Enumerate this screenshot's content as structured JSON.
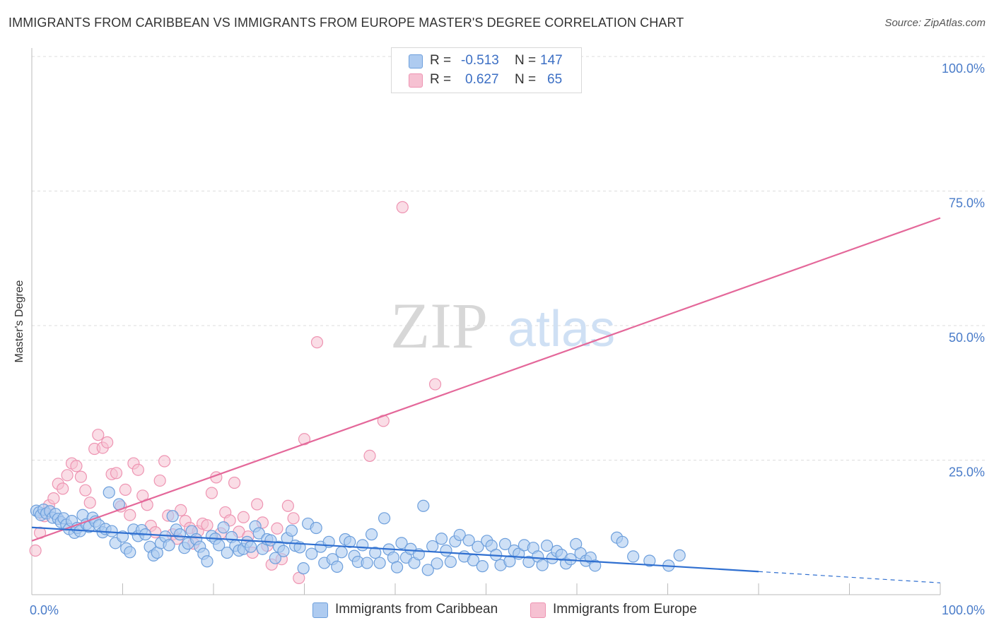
{
  "title": "IMMIGRANTS FROM CARIBBEAN VS IMMIGRANTS FROM EUROPE MASTER'S DEGREE CORRELATION CHART",
  "source": "Source: ZipAtlas.com",
  "watermark": {
    "zip": "ZIP",
    "atlas": "atlas"
  },
  "legend": {
    "caribbean": {
      "r_label": "R =",
      "r_value": "-0.513",
      "n_label": "N =",
      "n_value": "147"
    },
    "europe": {
      "r_label": "R =",
      "r_value": "0.627",
      "n_label": "N =",
      "n_value": "65"
    }
  },
  "bottom_legend": {
    "caribbean": "Immigrants from Caribbean",
    "europe": "Immigrants from Europe"
  },
  "colors": {
    "caribbean_fill": "#aecbf0",
    "caribbean_stroke": "#6d9fdc",
    "caribbean_line": "#2f6fd0",
    "europe_fill": "#f6c1d2",
    "europe_stroke": "#ee94b2",
    "europe_line": "#e4689a",
    "tick_text": "#4a7cc9",
    "grid": "#dddddd"
  },
  "chart_data": {
    "type": "scatter",
    "title": "IMMIGRANTS FROM CARIBBEAN VS IMMIGRANTS FROM EUROPE MASTER'S DEGREE CORRELATION CHART",
    "xlabel": "",
    "ylabel": "Master's Degree",
    "xlim": [
      0,
      100
    ],
    "ylim": [
      0,
      100
    ],
    "x_tick_labels": [
      "0.0%",
      "100.0%"
    ],
    "y_ticks": [
      25,
      50,
      75,
      100
    ],
    "y_tick_labels": [
      "25.0%",
      "50.0%",
      "75.0%",
      "100.0%"
    ],
    "grid": true,
    "legend_position": "top-center",
    "series": [
      {
        "name": "Immigrants from Caribbean",
        "R": -0.513,
        "N": 147,
        "trend": {
          "x0": 0,
          "y0": 12.5,
          "x_solid_end": 80,
          "y_solid_end": 4.3,
          "x1": 100,
          "y1": 2.2
        },
        "points": [
          [
            0.5,
            15.6
          ],
          [
            0.8,
            15.3
          ],
          [
            1.0,
            14.8
          ],
          [
            1.3,
            15.8
          ],
          [
            1.6,
            15.1
          ],
          [
            2.0,
            15.5
          ],
          [
            2.3,
            14.3
          ],
          [
            2.6,
            15.0
          ],
          [
            2.9,
            14.1
          ],
          [
            3.2,
            13.5
          ],
          [
            3.5,
            14.2
          ],
          [
            3.8,
            13.0
          ],
          [
            4.1,
            12.2
          ],
          [
            4.4,
            13.7
          ],
          [
            4.7,
            11.5
          ],
          [
            5.0,
            12.4
          ],
          [
            5.3,
            11.8
          ],
          [
            5.6,
            14.8
          ],
          [
            6.0,
            13.1
          ],
          [
            6.3,
            12.6
          ],
          [
            6.7,
            14.3
          ],
          [
            7.0,
            13.6
          ],
          [
            7.4,
            12.9
          ],
          [
            7.8,
            11.6
          ],
          [
            8.1,
            12.2
          ],
          [
            8.5,
            19.0
          ],
          [
            8.8,
            11.8
          ],
          [
            9.2,
            9.6
          ],
          [
            9.6,
            16.8
          ],
          [
            10.0,
            10.8
          ],
          [
            10.4,
            8.6
          ],
          [
            10.8,
            7.9
          ],
          [
            11.2,
            12.1
          ],
          [
            11.7,
            10.9
          ],
          [
            12.1,
            12.0
          ],
          [
            12.5,
            11.2
          ],
          [
            13.0,
            8.9
          ],
          [
            13.4,
            7.3
          ],
          [
            13.8,
            7.8
          ],
          [
            14.2,
            9.6
          ],
          [
            14.7,
            10.8
          ],
          [
            15.1,
            9.2
          ],
          [
            15.5,
            14.6
          ],
          [
            15.9,
            12.1
          ],
          [
            16.3,
            11.2
          ],
          [
            16.8,
            8.7
          ],
          [
            17.2,
            9.5
          ],
          [
            17.6,
            11.8
          ],
          [
            18.1,
            10.3
          ],
          [
            18.5,
            8.9
          ],
          [
            18.9,
            7.6
          ],
          [
            19.3,
            6.2
          ],
          [
            19.8,
            10.9
          ],
          [
            20.2,
            10.4
          ],
          [
            20.6,
            9.2
          ],
          [
            21.1,
            12.5
          ],
          [
            21.5,
            7.8
          ],
          [
            22.0,
            10.7
          ],
          [
            22.4,
            9.1
          ],
          [
            22.8,
            8.2
          ],
          [
            23.3,
            8.5
          ],
          [
            23.7,
            9.8
          ],
          [
            24.1,
            8.9
          ],
          [
            24.6,
            12.7
          ],
          [
            25.0,
            11.4
          ],
          [
            25.4,
            8.5
          ],
          [
            25.9,
            10.3
          ],
          [
            26.3,
            10.1
          ],
          [
            26.8,
            6.8
          ],
          [
            27.2,
            8.9
          ],
          [
            27.7,
            8.1
          ],
          [
            28.1,
            10.5
          ],
          [
            28.6,
            11.9
          ],
          [
            29.0,
            9.1
          ],
          [
            29.5,
            8.8
          ],
          [
            29.9,
            4.9
          ],
          [
            30.4,
            13.2
          ],
          [
            30.8,
            7.6
          ],
          [
            31.3,
            12.4
          ],
          [
            31.8,
            8.9
          ],
          [
            32.2,
            5.9
          ],
          [
            32.7,
            9.8
          ],
          [
            33.1,
            6.6
          ],
          [
            33.6,
            5.2
          ],
          [
            34.1,
            7.9
          ],
          [
            34.5,
            10.3
          ],
          [
            35.0,
            9.8
          ],
          [
            35.5,
            7.2
          ],
          [
            35.9,
            6.1
          ],
          [
            36.4,
            9.2
          ],
          [
            36.9,
            5.9
          ],
          [
            37.4,
            11.2
          ],
          [
            37.8,
            7.8
          ],
          [
            38.3,
            5.9
          ],
          [
            38.8,
            14.2
          ],
          [
            39.3,
            8.4
          ],
          [
            39.8,
            6.9
          ],
          [
            40.2,
            5.1
          ],
          [
            40.7,
            9.6
          ],
          [
            41.2,
            6.9
          ],
          [
            41.7,
            8.5
          ],
          [
            42.1,
            5.9
          ],
          [
            42.6,
            7.5
          ],
          [
            43.1,
            16.5
          ],
          [
            43.6,
            4.6
          ],
          [
            44.1,
            9.0
          ],
          [
            44.6,
            5.8
          ],
          [
            45.1,
            10.4
          ],
          [
            45.6,
            8.2
          ],
          [
            46.1,
            6.1
          ],
          [
            46.6,
            9.9
          ],
          [
            47.1,
            11.1
          ],
          [
            47.6,
            7.1
          ],
          [
            48.1,
            10.1
          ],
          [
            48.6,
            6.4
          ],
          [
            49.1,
            8.9
          ],
          [
            49.6,
            5.3
          ],
          [
            50.1,
            10.0
          ],
          [
            50.6,
            9.1
          ],
          [
            51.1,
            7.4
          ],
          [
            51.6,
            5.5
          ],
          [
            52.1,
            9.4
          ],
          [
            52.6,
            6.2
          ],
          [
            53.1,
            8.2
          ],
          [
            53.6,
            7.6
          ],
          [
            54.2,
            9.2
          ],
          [
            54.7,
            6.1
          ],
          [
            55.2,
            8.7
          ],
          [
            55.7,
            7.1
          ],
          [
            56.2,
            5.5
          ],
          [
            56.7,
            9.1
          ],
          [
            57.3,
            6.8
          ],
          [
            57.8,
            8.1
          ],
          [
            58.3,
            7.4
          ],
          [
            58.8,
            5.8
          ],
          [
            59.3,
            6.6
          ],
          [
            59.9,
            9.4
          ],
          [
            60.4,
            7.7
          ],
          [
            61.0,
            6.3
          ],
          [
            61.5,
            6.9
          ],
          [
            62.0,
            5.4
          ],
          [
            64.4,
            10.6
          ],
          [
            65.0,
            9.8
          ],
          [
            66.2,
            7.1
          ],
          [
            68.0,
            6.3
          ],
          [
            70.1,
            5.4
          ],
          [
            71.3,
            7.3
          ]
        ]
      },
      {
        "name": "Immigrants from Europe",
        "R": 0.627,
        "N": 65,
        "trend": {
          "x0": 0,
          "y0": 10.0,
          "x1": 100,
          "y1": 70.0
        },
        "points": [
          [
            0.4,
            8.2
          ],
          [
            0.9,
            11.5
          ],
          [
            1.4,
            14.6
          ],
          [
            1.9,
            16.6
          ],
          [
            2.4,
            17.9
          ],
          [
            2.9,
            20.6
          ],
          [
            3.4,
            19.7
          ],
          [
            3.9,
            22.2
          ],
          [
            4.4,
            24.4
          ],
          [
            4.9,
            23.9
          ],
          [
            5.4,
            21.9
          ],
          [
            5.9,
            19.4
          ],
          [
            6.4,
            17.1
          ],
          [
            6.9,
            27.1
          ],
          [
            7.3,
            29.7
          ],
          [
            7.8,
            27.3
          ],
          [
            8.3,
            28.3
          ],
          [
            8.8,
            22.4
          ],
          [
            9.3,
            22.6
          ],
          [
            9.8,
            16.4
          ],
          [
            10.3,
            19.5
          ],
          [
            10.8,
            14.8
          ],
          [
            11.2,
            24.4
          ],
          [
            11.7,
            23.2
          ],
          [
            12.2,
            18.4
          ],
          [
            12.7,
            16.7
          ],
          [
            13.1,
            12.8
          ],
          [
            13.6,
            11.6
          ],
          [
            14.1,
            21.2
          ],
          [
            14.6,
            24.8
          ],
          [
            15.0,
            14.7
          ],
          [
            15.5,
            11.2
          ],
          [
            16.0,
            10.4
          ],
          [
            16.4,
            15.7
          ],
          [
            16.9,
            13.7
          ],
          [
            17.4,
            12.4
          ],
          [
            17.8,
            9.5
          ],
          [
            18.3,
            11.8
          ],
          [
            18.8,
            13.2
          ],
          [
            19.3,
            12.9
          ],
          [
            19.8,
            18.9
          ],
          [
            20.3,
            21.8
          ],
          [
            20.8,
            11.4
          ],
          [
            21.3,
            15.3
          ],
          [
            21.8,
            13.8
          ],
          [
            22.3,
            20.8
          ],
          [
            22.8,
            11.7
          ],
          [
            23.3,
            14.4
          ],
          [
            23.8,
            10.8
          ],
          [
            24.3,
            7.8
          ],
          [
            24.8,
            16.8
          ],
          [
            25.4,
            13.4
          ],
          [
            25.9,
            9.1
          ],
          [
            26.4,
            5.6
          ],
          [
            27.0,
            12.3
          ],
          [
            27.5,
            6.6
          ],
          [
            28.2,
            16.5
          ],
          [
            28.8,
            14.2
          ],
          [
            29.4,
            3.1
          ],
          [
            30.0,
            28.9
          ],
          [
            31.4,
            46.9
          ],
          [
            37.2,
            25.8
          ],
          [
            38.7,
            32.3
          ],
          [
            40.8,
            72.0
          ],
          [
            44.4,
            39.1
          ]
        ]
      }
    ]
  }
}
